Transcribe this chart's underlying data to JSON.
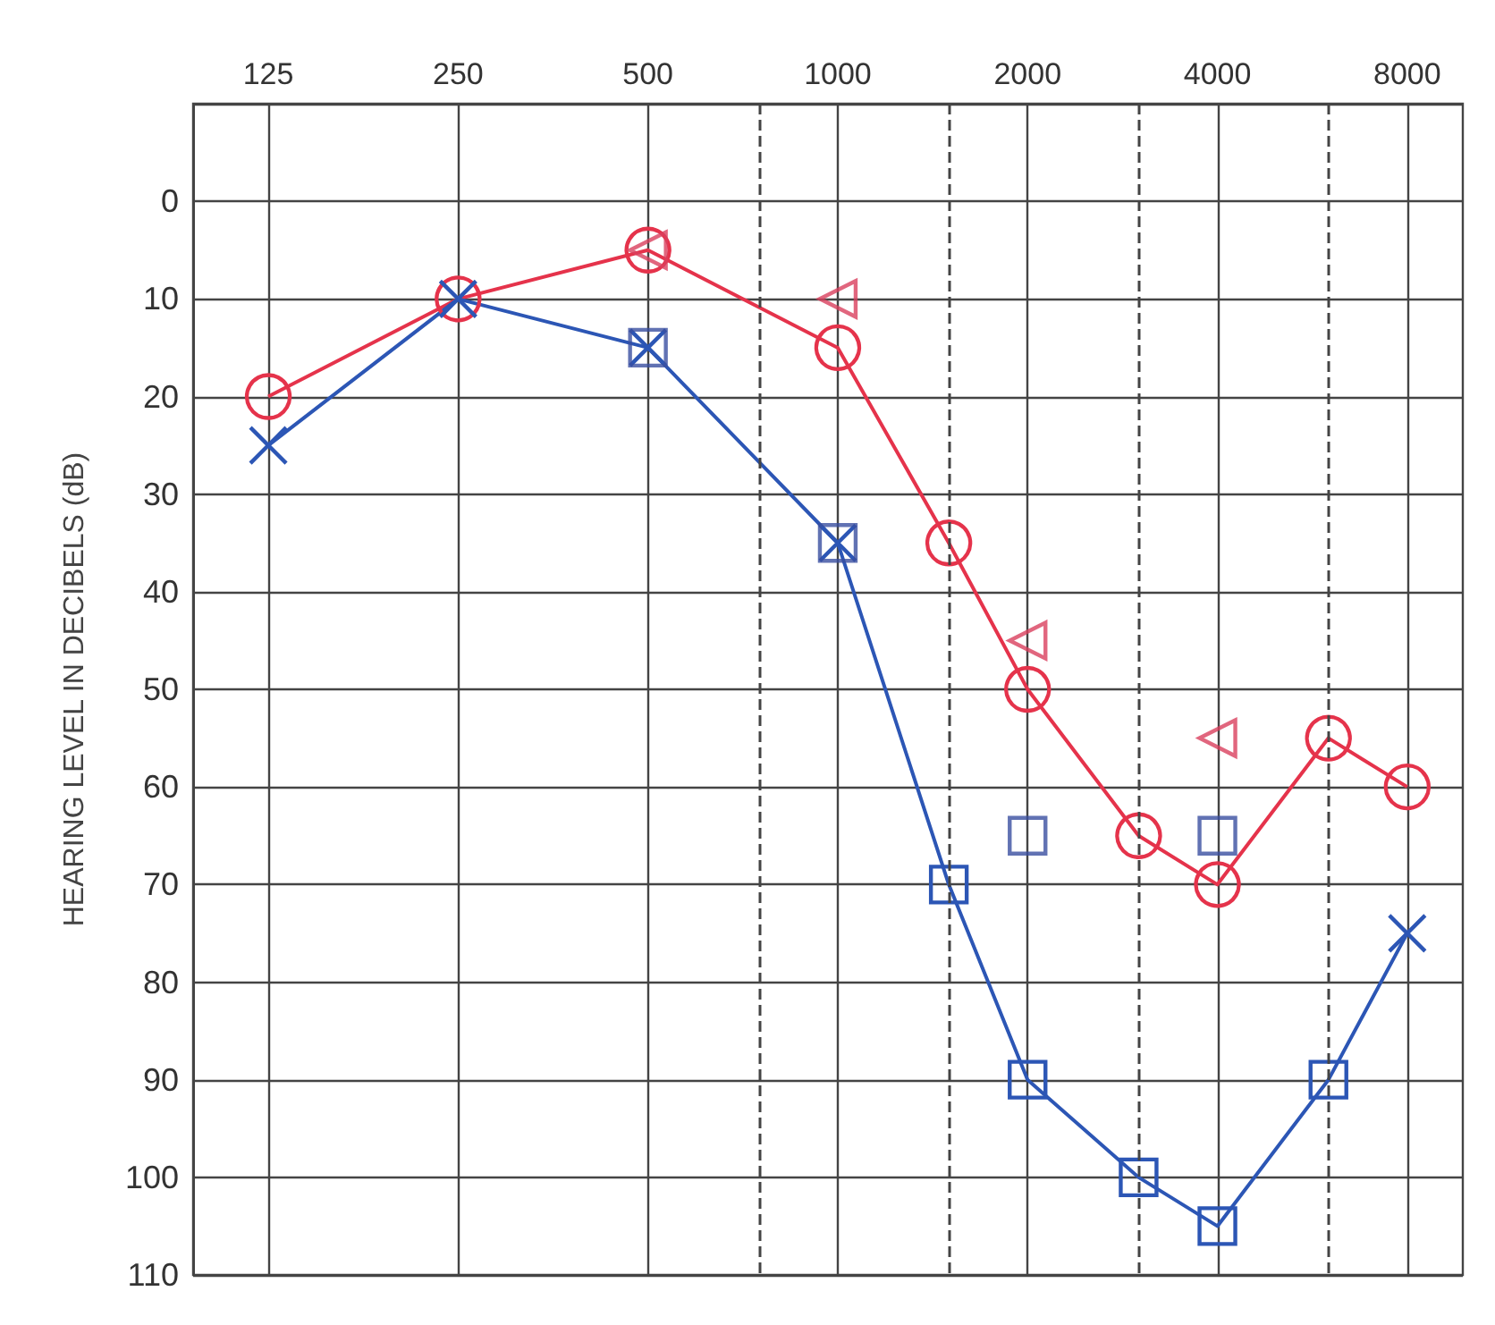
{
  "chart_data": {
    "type": "line",
    "ylabel": "HEARING LEVEL IN DECIBELS (dB)",
    "x": [
      125,
      250,
      500,
      750,
      1000,
      1500,
      2000,
      3000,
      4000,
      6000,
      8000
    ],
    "series": [
      {
        "color": "#e5334b",
        "marker": "circle",
        "values": [
          20,
          10,
          5,
          null,
          15,
          35,
          50,
          65,
          70,
          55,
          60
        ]
      },
      {
        "color": "#2c56b5",
        "marker": [
          "cross",
          "cross",
          "cross",
          null,
          "cross",
          "square",
          "square",
          "square",
          "square",
          "square",
          "cross"
        ],
        "values": [
          25,
          10,
          15,
          null,
          35,
          70,
          90,
          100,
          105,
          90,
          75
        ]
      },
      {
        "type": "scatter",
        "color": "#d9405e",
        "marker": "triangle",
        "values": [
          null,
          null,
          5,
          null,
          10,
          null,
          45,
          null,
          55,
          null,
          null
        ]
      },
      {
        "type": "scatter",
        "color": "#3a4fa0",
        "marker": "square",
        "values": [
          null,
          null,
          15,
          null,
          35,
          null,
          65,
          null,
          65,
          null,
          null
        ]
      }
    ],
    "xlim": [
      95,
      9800
    ],
    "xticks": [
      125,
      250,
      500,
      1000,
      2000,
      4000,
      8000
    ],
    "ylim": [
      110,
      -10
    ],
    "yticks": [
      {
        "value": -10,
        "label": null
      },
      0,
      10,
      20,
      30,
      40,
      50,
      60,
      70,
      80,
      90,
      100,
      110
    ],
    "ref_lines": [
      {
        "axis": "x",
        "value": 750,
        "line_style": "dashed"
      },
      {
        "axis": "x",
        "value": 1500,
        "line_style": "dashed"
      },
      {
        "axis": "x",
        "value": 3000,
        "line_style": "dashed"
      },
      {
        "axis": "x",
        "value": 6000,
        "line_style": "dashed"
      }
    ],
    "log": "x",
    "grid": true
  }
}
